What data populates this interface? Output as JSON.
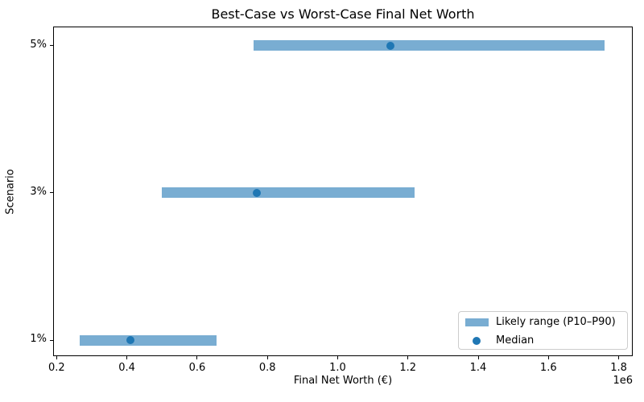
{
  "chart_data": {
    "type": "bar",
    "variant": "horizontal-range-bars-with-median-markers",
    "title": "Best-Case vs Worst-Case Final Net Worth",
    "xlabel": "Final Net Worth (€)",
    "ylabel": "Scenario",
    "x_axis": {
      "xlim": [
        190000,
        1840000
      ],
      "ticks": [
        200000,
        400000,
        600000,
        800000,
        1000000,
        1200000,
        1400000,
        1600000,
        1800000
      ],
      "tick_labels": [
        "0.2",
        "0.4",
        "0.6",
        "0.8",
        "1.0",
        "1.2",
        "1.4",
        "1.6",
        "1.8"
      ],
      "offset_label": "1e6",
      "grid": false
    },
    "rows": [
      {
        "scenario": "5%",
        "p10": 760000,
        "median": 1150000,
        "p90": 1760000
      },
      {
        "scenario": "3%",
        "p10": 500000,
        "median": 770000,
        "p90": 1220000
      },
      {
        "scenario": "1%",
        "p10": 265000,
        "median": 410000,
        "p90": 655000
      }
    ],
    "legend": {
      "position": "lower right",
      "items": [
        {
          "label": "Likely range (P10–P90)",
          "marker": "patch"
        },
        {
          "label": "Median",
          "marker": "dot"
        }
      ]
    },
    "colors": {
      "range_fill": "#79add2",
      "median_dot": "#1f77b4",
      "spine": "#000000"
    }
  }
}
